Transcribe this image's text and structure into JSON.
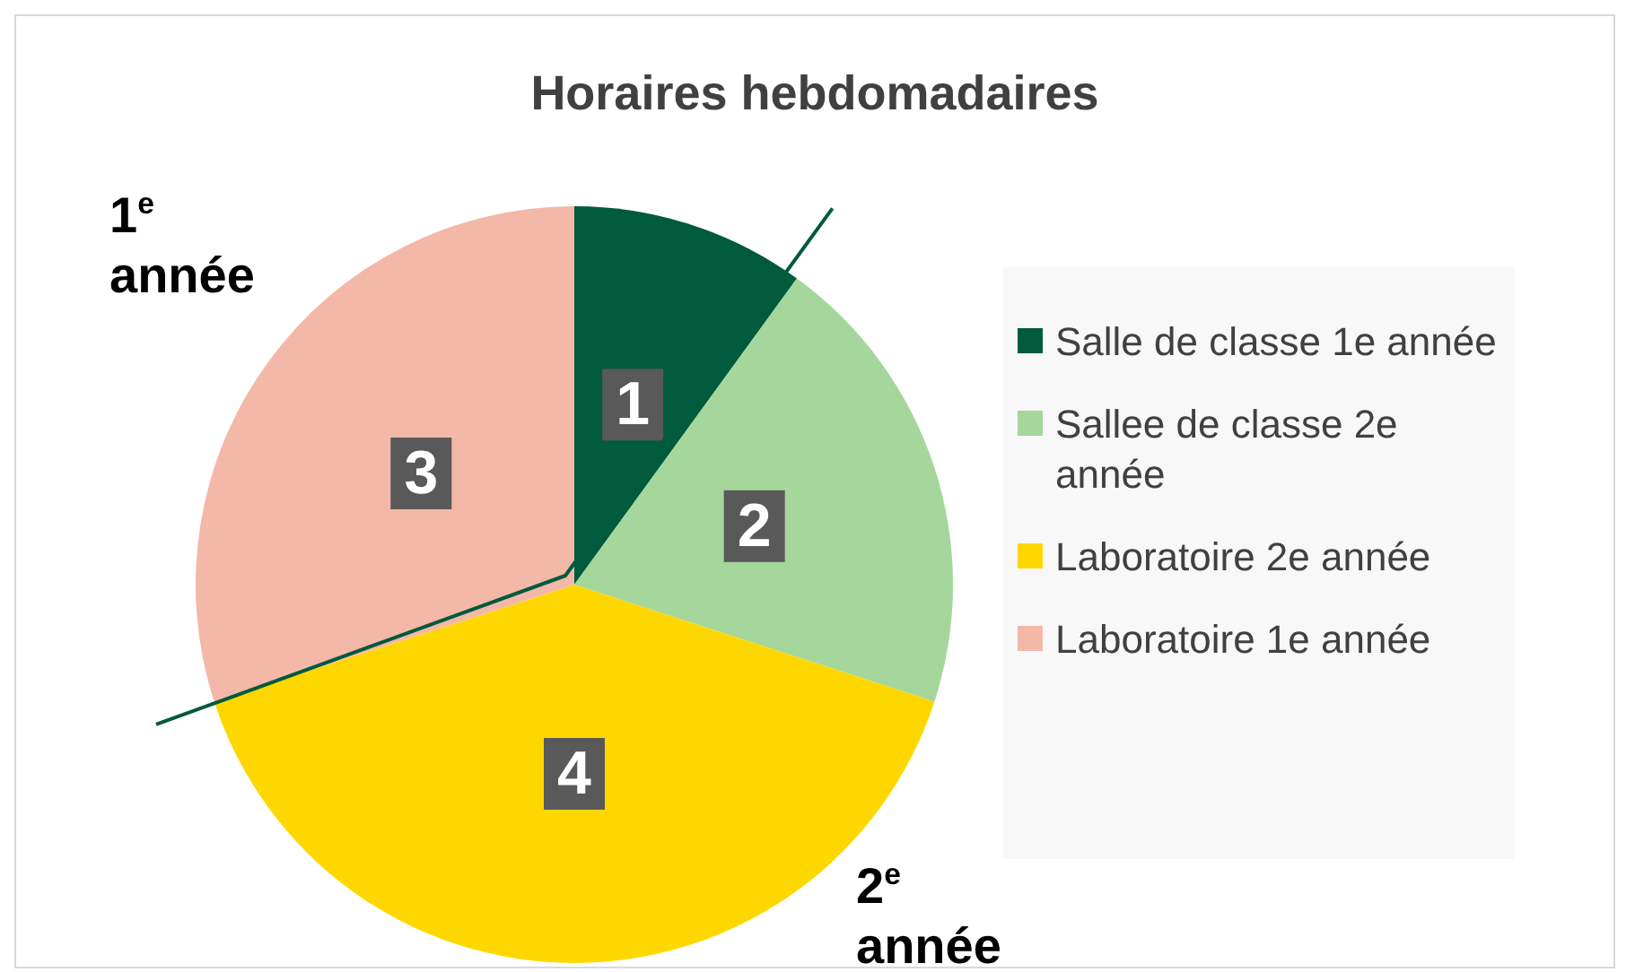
{
  "chart_data": {
    "type": "pie",
    "title": "Horaires hebdomadaires",
    "categories": [
      "Salle de classe 1e année",
      "Sallee de classe 2e année",
      "Laboratoire 2e année",
      "Laboratoire 1e année"
    ],
    "values": [
      1,
      2,
      4,
      3
    ],
    "colors": [
      "#005a3c",
      "#a5d69b",
      "#ffd700",
      "#f4b8a8"
    ],
    "data_labels": true,
    "legend": "right",
    "annotations": [
      "1$^{e}$ année",
      "2$^{e}$ année"
    ]
  }
}
